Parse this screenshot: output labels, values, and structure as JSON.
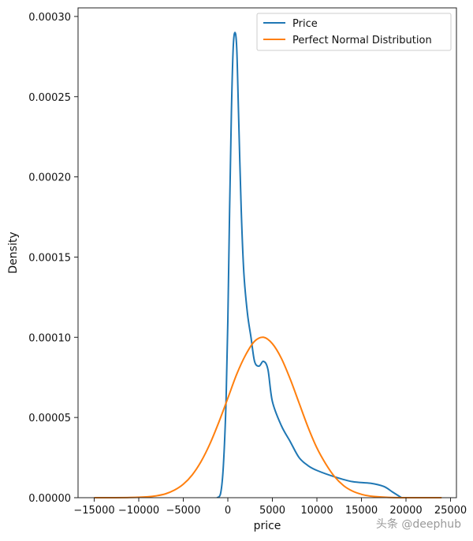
{
  "chart_data": {
    "type": "line",
    "title": "",
    "xlabel": "price",
    "ylabel": "Density",
    "xlim": [
      -17000,
      26000
    ],
    "ylim": [
      0,
      0.000305
    ],
    "xticks": [
      -15000,
      -10000,
      -5000,
      0,
      5000,
      10000,
      15000,
      20000,
      25000
    ],
    "xtick_labels": [
      "−15000",
      "−10000",
      "−5000",
      "0",
      "5000",
      "10000",
      "15000",
      "20000",
      "25000"
    ],
    "yticks": [
      0,
      5e-05,
      0.0001,
      0.00015,
      0.0002,
      0.00025,
      0.0003
    ],
    "ytick_labels": [
      "0.00000",
      "0.00005",
      "0.00010",
      "0.00015",
      "0.00020",
      "0.00025",
      "0.00030"
    ],
    "grid": false,
    "legend": "top-right",
    "series": [
      {
        "name": "Price",
        "color": "#1f77b4",
        "x": [
          -1200,
          -800,
          -500,
          -200,
          0,
          200,
          400,
          600,
          800,
          1000,
          1200,
          1500,
          1800,
          2200,
          2600,
          3000,
          3500,
          4000,
          4500,
          5000,
          6000,
          7000,
          8000,
          9000,
          10000,
          12000,
          14000,
          16000,
          17500,
          18500,
          19500
        ],
        "y": [
          0,
          3e-06,
          2e-05,
          6e-05,
          0.00011,
          0.00018,
          0.00024,
          0.00028,
          0.00029,
          0.00028,
          0.00024,
          0.00018,
          0.00014,
          0.000115,
          0.0001,
          8.5e-05,
          8.2e-05,
          8.5e-05,
          8e-05,
          6e-05,
          4.5e-05,
          3.5e-05,
          2.5e-05,
          2e-05,
          1.7e-05,
          1.3e-05,
          1e-05,
          9e-06,
          7e-06,
          3.5e-06,
          0
        ]
      },
      {
        "name": "Perfect Normal Distribution",
        "color": "#ff7f0e",
        "x": [
          -15000,
          -13000,
          -11000,
          -9000,
          -8000,
          -7000,
          -6000,
          -5000,
          -4000,
          -3000,
          -2000,
          -1000,
          0,
          1000,
          2000,
          3000,
          4000,
          5000,
          6000,
          7000,
          8000,
          9000,
          10000,
          11000,
          12000,
          13000,
          14000,
          15000,
          16000,
          18000,
          20000,
          24000
        ],
        "y": [
          0,
          0,
          1e-07,
          5.5e-07,
          1.2e-06,
          2.4e-06,
          4.7e-06,
          8.4e-06,
          1.42e-05,
          2.26e-05,
          3.37e-05,
          4.72e-05,
          6.2e-05,
          7.7e-05,
          8.9e-05,
          9.75e-05,
          0.0001,
          9.6e-05,
          8.7e-05,
          7.4e-05,
          5.9e-05,
          4.4e-05,
          3.1e-05,
          2.1e-05,
          1.3e-05,
          7.5e-06,
          4.1e-06,
          2.1e-06,
          1e-06,
          2e-07,
          0,
          0
        ]
      }
    ]
  },
  "watermark": "头条 @deephub"
}
